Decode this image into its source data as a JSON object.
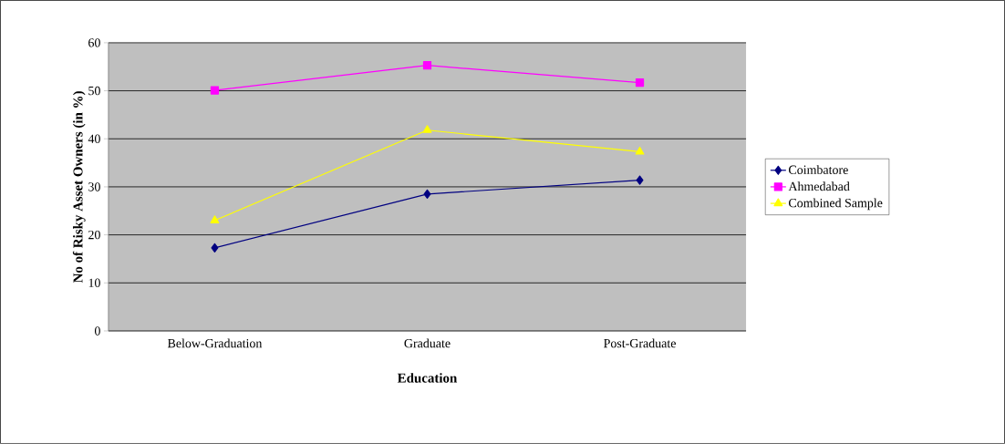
{
  "chart_data": {
    "type": "line",
    "xlabel": "Education",
    "ylabel": "No of Risky Asset Owners (in %)",
    "categories": [
      "Below-Graduation",
      "Graduate",
      "Post-Graduate"
    ],
    "series": [
      {
        "name": "Coimbatore",
        "color": "#000080",
        "marker": "diamond",
        "values": [
          17.3,
          28.5,
          31.4
        ]
      },
      {
        "name": "Ahmedabad",
        "color": "#ff00ff",
        "marker": "square",
        "values": [
          50.1,
          55.3,
          51.7
        ]
      },
      {
        "name": "Combined Sample",
        "color": "#ffff00",
        "marker": "triangle",
        "values": [
          23.0,
          41.8,
          37.3
        ]
      }
    ],
    "ylim": [
      0,
      60
    ],
    "yticks": [
      0,
      10,
      20,
      30,
      40,
      50,
      60
    ],
    "grid": "y",
    "legend": "right",
    "line_style": "solid"
  }
}
